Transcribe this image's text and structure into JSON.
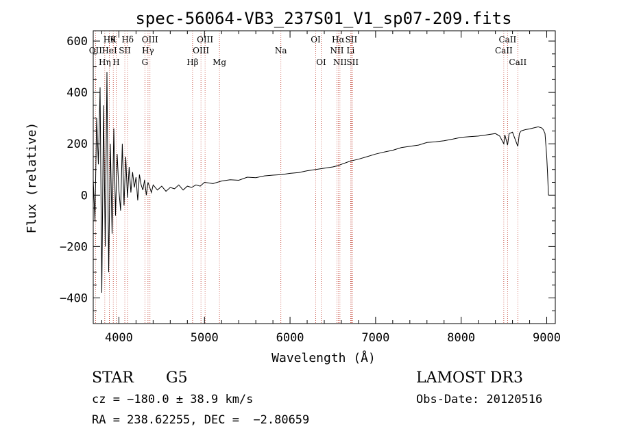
{
  "chart_data": {
    "type": "line",
    "title": "spec-56064-VB3_237S01_V1_sp07-209.fits",
    "xlabel": "Wavelength (Å)",
    "ylabel": "Flux (relative)",
    "xlim": [
      3700,
      9100
    ],
    "ylim": [
      -500,
      640
    ],
    "x_ticks": [
      4000,
      5000,
      6000,
      7000,
      8000,
      9000
    ],
    "y_ticks": [
      -400,
      -200,
      0,
      200,
      400,
      600
    ],
    "x_tick_labels": [
      "4000",
      "5000",
      "6000",
      "7000",
      "8000",
      "9000"
    ],
    "y_tick_labels": [
      "−400",
      "−200",
      "0",
      "200",
      "400",
      "600"
    ],
    "series": [
      {
        "name": "flux",
        "x": [
          3700,
          3720,
          3740,
          3760,
          3780,
          3800,
          3820,
          3840,
          3860,
          3880,
          3900,
          3920,
          3940,
          3960,
          3980,
          4000,
          4020,
          4040,
          4060,
          4080,
          4100,
          4120,
          4140,
          4160,
          4180,
          4200,
          4220,
          4240,
          4260,
          4280,
          4300,
          4320,
          4340,
          4360,
          4380,
          4400,
          4450,
          4500,
          4550,
          4600,
          4650,
          4700,
          4750,
          4800,
          4850,
          4900,
          4950,
          5000,
          5100,
          5200,
          5300,
          5400,
          5500,
          5600,
          5700,
          5800,
          5900,
          6000,
          6100,
          6200,
          6300,
          6400,
          6500,
          6560,
          6600,
          6700,
          6800,
          6900,
          7000,
          7100,
          7200,
          7300,
          7400,
          7500,
          7600,
          7700,
          7800,
          7900,
          8000,
          8100,
          8200,
          8300,
          8400,
          8450,
          8498,
          8510,
          8542,
          8560,
          8600,
          8662,
          8680,
          8700,
          8750,
          8800,
          8850,
          8900,
          8940,
          8960,
          8980,
          9000,
          9010,
          9020
        ],
        "y": [
          60,
          -100,
          300,
          120,
          420,
          -380,
          350,
          -200,
          480,
          -300,
          200,
          -150,
          260,
          -80,
          160,
          20,
          -60,
          200,
          -40,
          150,
          -10,
          110,
          10,
          90,
          30,
          70,
          -20,
          80,
          40,
          20,
          60,
          0,
          50,
          30,
          10,
          40,
          20,
          35,
          15,
          30,
          25,
          40,
          20,
          35,
          30,
          40,
          35,
          50,
          45,
          55,
          60,
          58,
          70,
          68,
          75,
          78,
          80,
          85,
          88,
          95,
          100,
          105,
          110,
          115,
          120,
          132,
          140,
          150,
          160,
          168,
          175,
          185,
          190,
          195,
          205,
          208,
          212,
          218,
          225,
          228,
          230,
          235,
          240,
          230,
          200,
          235,
          195,
          240,
          245,
          190,
          240,
          250,
          255,
          258,
          262,
          266,
          262,
          255,
          240,
          150,
          80,
          0
        ]
      }
    ],
    "spectral_lines": [
      {
        "label": "OΙΙ",
        "wavelength": 3727,
        "row": 2
      },
      {
        "label": "Hη",
        "wavelength": 3835,
        "row": 3
      },
      {
        "label": "Hθ",
        "wavelength": 3889,
        "row": 1
      },
      {
        "label": "HeΙ",
        "wavelength": 3889,
        "row": 2
      },
      {
        "label": "K",
        "wavelength": 3934,
        "row": 1
      },
      {
        "label": "H",
        "wavelength": 3968,
        "row": 3
      },
      {
        "label": "SΙΙ",
        "wavelength": 4069,
        "row": 2
      },
      {
        "label": "Hδ",
        "wavelength": 4102,
        "row": 1
      },
      {
        "label": "G",
        "wavelength": 4304,
        "row": 3
      },
      {
        "label": "Hγ",
        "wavelength": 4340,
        "row": 2
      },
      {
        "label": "OΙΙΙ",
        "wavelength": 4363,
        "row": 1
      },
      {
        "label": "Hβ",
        "wavelength": 4861,
        "row": 3
      },
      {
        "label": "OΙΙΙ",
        "wavelength": 4959,
        "row": 2
      },
      {
        "label": "OΙΙΙ",
        "wavelength": 5007,
        "row": 1
      },
      {
        "label": "Mg",
        "wavelength": 5175,
        "row": 3
      },
      {
        "label": "Na",
        "wavelength": 5893,
        "row": 2
      },
      {
        "label": "OΙ",
        "wavelength": 6300,
        "row": 1
      },
      {
        "label": "OΙ",
        "wavelength": 6364,
        "row": 3
      },
      {
        "label": "NΙΙ",
        "wavelength": 6548,
        "row": 2
      },
      {
        "label": "Hα",
        "wavelength": 6563,
        "row": 1
      },
      {
        "label": "NΙΙ",
        "wavelength": 6583,
        "row": 3
      },
      {
        "label": "Li",
        "wavelength": 6708,
        "row": 2
      },
      {
        "label": "SΙΙ",
        "wavelength": 6716,
        "row": 1
      },
      {
        "label": "SΙΙ",
        "wavelength": 6731,
        "row": 3
      },
      {
        "label": "CaΙΙ",
        "wavelength": 8498,
        "row": 2
      },
      {
        "label": "CaΙΙ",
        "wavelength": 8542,
        "row": 1
      },
      {
        "label": "CaΙΙ",
        "wavelength": 8662,
        "row": 3
      }
    ],
    "colors": {
      "line": "#000000",
      "marker": "#c0392b",
      "axis": "#000000"
    }
  },
  "info": {
    "object_class": "STAR",
    "subclass": "G5",
    "survey": "LAMOST DR3",
    "redshift": "cz = −180.0 ± 38.9 km/s",
    "obs_date": "Obs-Date: 20120516",
    "coords": "RA = 238.62255, DEC =  −2.80659"
  }
}
